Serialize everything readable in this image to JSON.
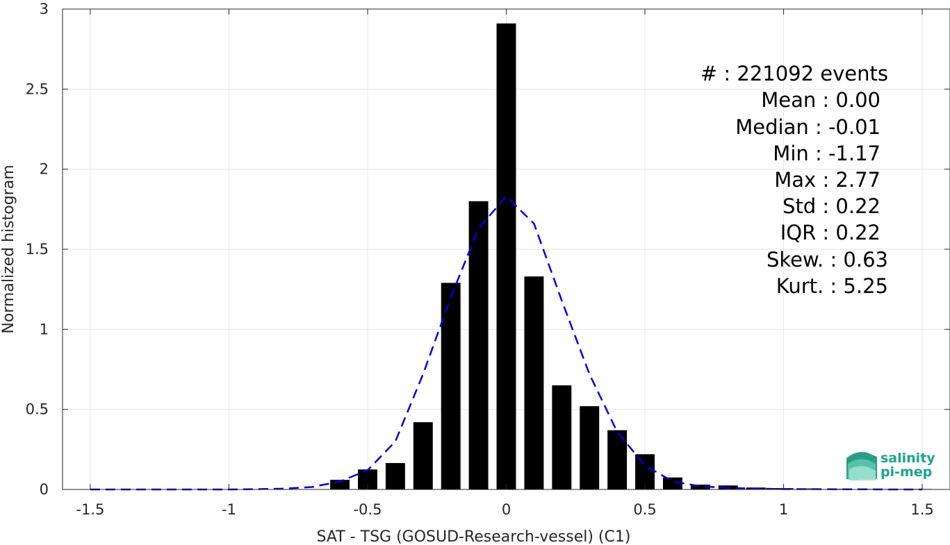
{
  "chart_data": {
    "type": "bar",
    "xlabel": "SAT - TSG (GOSUD-Research-vessel) (C1)",
    "ylabel": "Normalized histogram",
    "xlim": [
      -1.6,
      1.6
    ],
    "ylim": [
      0,
      3
    ],
    "xticks": [
      -1.5,
      -1,
      -0.5,
      0,
      0.5,
      1,
      1.5
    ],
    "xtick_labels": [
      "-1.5",
      "-1",
      "-0.5",
      "0",
      "0.5",
      "1",
      "1.5"
    ],
    "yticks": [
      0,
      0.5,
      1,
      1.5,
      2,
      2.5,
      3
    ],
    "ytick_labels": [
      "0",
      "0.5",
      "1",
      "1.5",
      "2",
      "2.5",
      "3"
    ],
    "grid": true,
    "bar_color": "#000000",
    "bin_width": 0.1,
    "bars": {
      "x": [
        -0.6,
        -0.5,
        -0.4,
        -0.3,
        -0.2,
        -0.1,
        0.0,
        0.1,
        0.2,
        0.3,
        0.4,
        0.5,
        0.6,
        0.7,
        0.8,
        0.9,
        1.0,
        1.1,
        1.2,
        1.3,
        1.4,
        1.5
      ],
      "values": [
        0.06,
        0.125,
        0.165,
        0.42,
        1.29,
        1.8,
        2.91,
        1.33,
        0.65,
        0.52,
        0.37,
        0.22,
        0.075,
        0.03,
        0.025,
        0.012,
        0.008,
        0.006,
        0.004,
        0.003,
        0.003,
        0.003
      ]
    },
    "fit_curve": {
      "style": "dashed",
      "color": "#0000dd",
      "x": [
        -1.5,
        -1.4,
        -1.3,
        -1.2,
        -1.1,
        -1.0,
        -0.9,
        -0.8,
        -0.7,
        -0.6,
        -0.5,
        -0.4,
        -0.3,
        -0.2,
        -0.1,
        0.0,
        0.1,
        0.2,
        0.3,
        0.4,
        0.5,
        0.6,
        0.7,
        0.8,
        0.9,
        1.0,
        1.1,
        1.2,
        1.3,
        1.4,
        1.5
      ],
      "values": [
        0,
        0,
        0,
        0,
        0,
        0,
        0.002,
        0.005,
        0.015,
        0.05,
        0.12,
        0.3,
        0.72,
        1.2,
        1.63,
        1.83,
        1.66,
        1.18,
        0.72,
        0.36,
        0.15,
        0.05,
        0.02,
        0.01,
        0.005,
        0.002,
        0.002,
        0.001,
        0.001,
        0,
        0
      ]
    },
    "stats": [
      {
        "key": "#  : 221092 events",
        "sep_x": 0
      },
      {
        "key": "Mean : 0.00"
      },
      {
        "key": "Median : -0.01"
      },
      {
        "key": "Min : -1.17"
      },
      {
        "key": "Max : 2.77"
      },
      {
        "key": "Std : 0.22"
      },
      {
        "key": "IQR : 0.22"
      },
      {
        "key": "Skew. : 0.63"
      },
      {
        "key": "Kurt. : 5.25"
      }
    ]
  },
  "logo": {
    "line1": "salinity",
    "line2": "pi-mep",
    "color": "#1aa58d"
  }
}
